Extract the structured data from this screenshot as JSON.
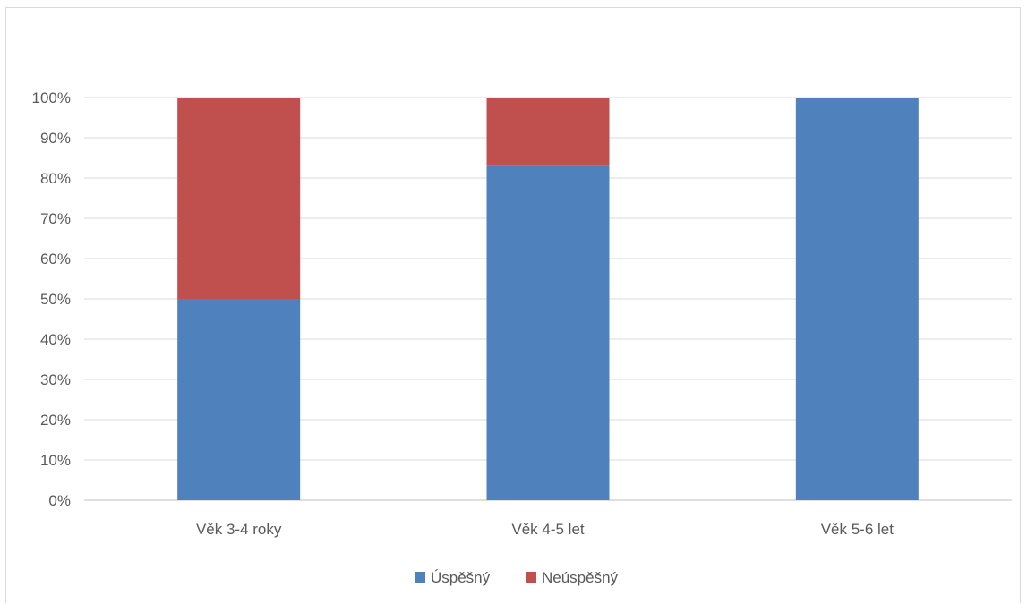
{
  "chart_data": {
    "type": "bar",
    "stacked": true,
    "percent_stacked": true,
    "categories": [
      "Věk 3-4 roky",
      "Věk 4-5 let",
      "Věk 5-6 let"
    ],
    "series": [
      {
        "name": "Úspěšný",
        "color": "#4f81bd",
        "values": [
          50,
          83.3,
          100
        ]
      },
      {
        "name": "Neúspěšný",
        "color": "#c0504d",
        "values": [
          50,
          16.7,
          0
        ]
      }
    ],
    "y_ticks": [
      "0%",
      "10%",
      "20%",
      "30%",
      "40%",
      "50%",
      "60%",
      "70%",
      "80%",
      "90%",
      "100%"
    ],
    "ylim": [
      0,
      100
    ],
    "grid": true,
    "legend_position": "bottom",
    "title": "",
    "xlabel": "",
    "ylabel": ""
  }
}
